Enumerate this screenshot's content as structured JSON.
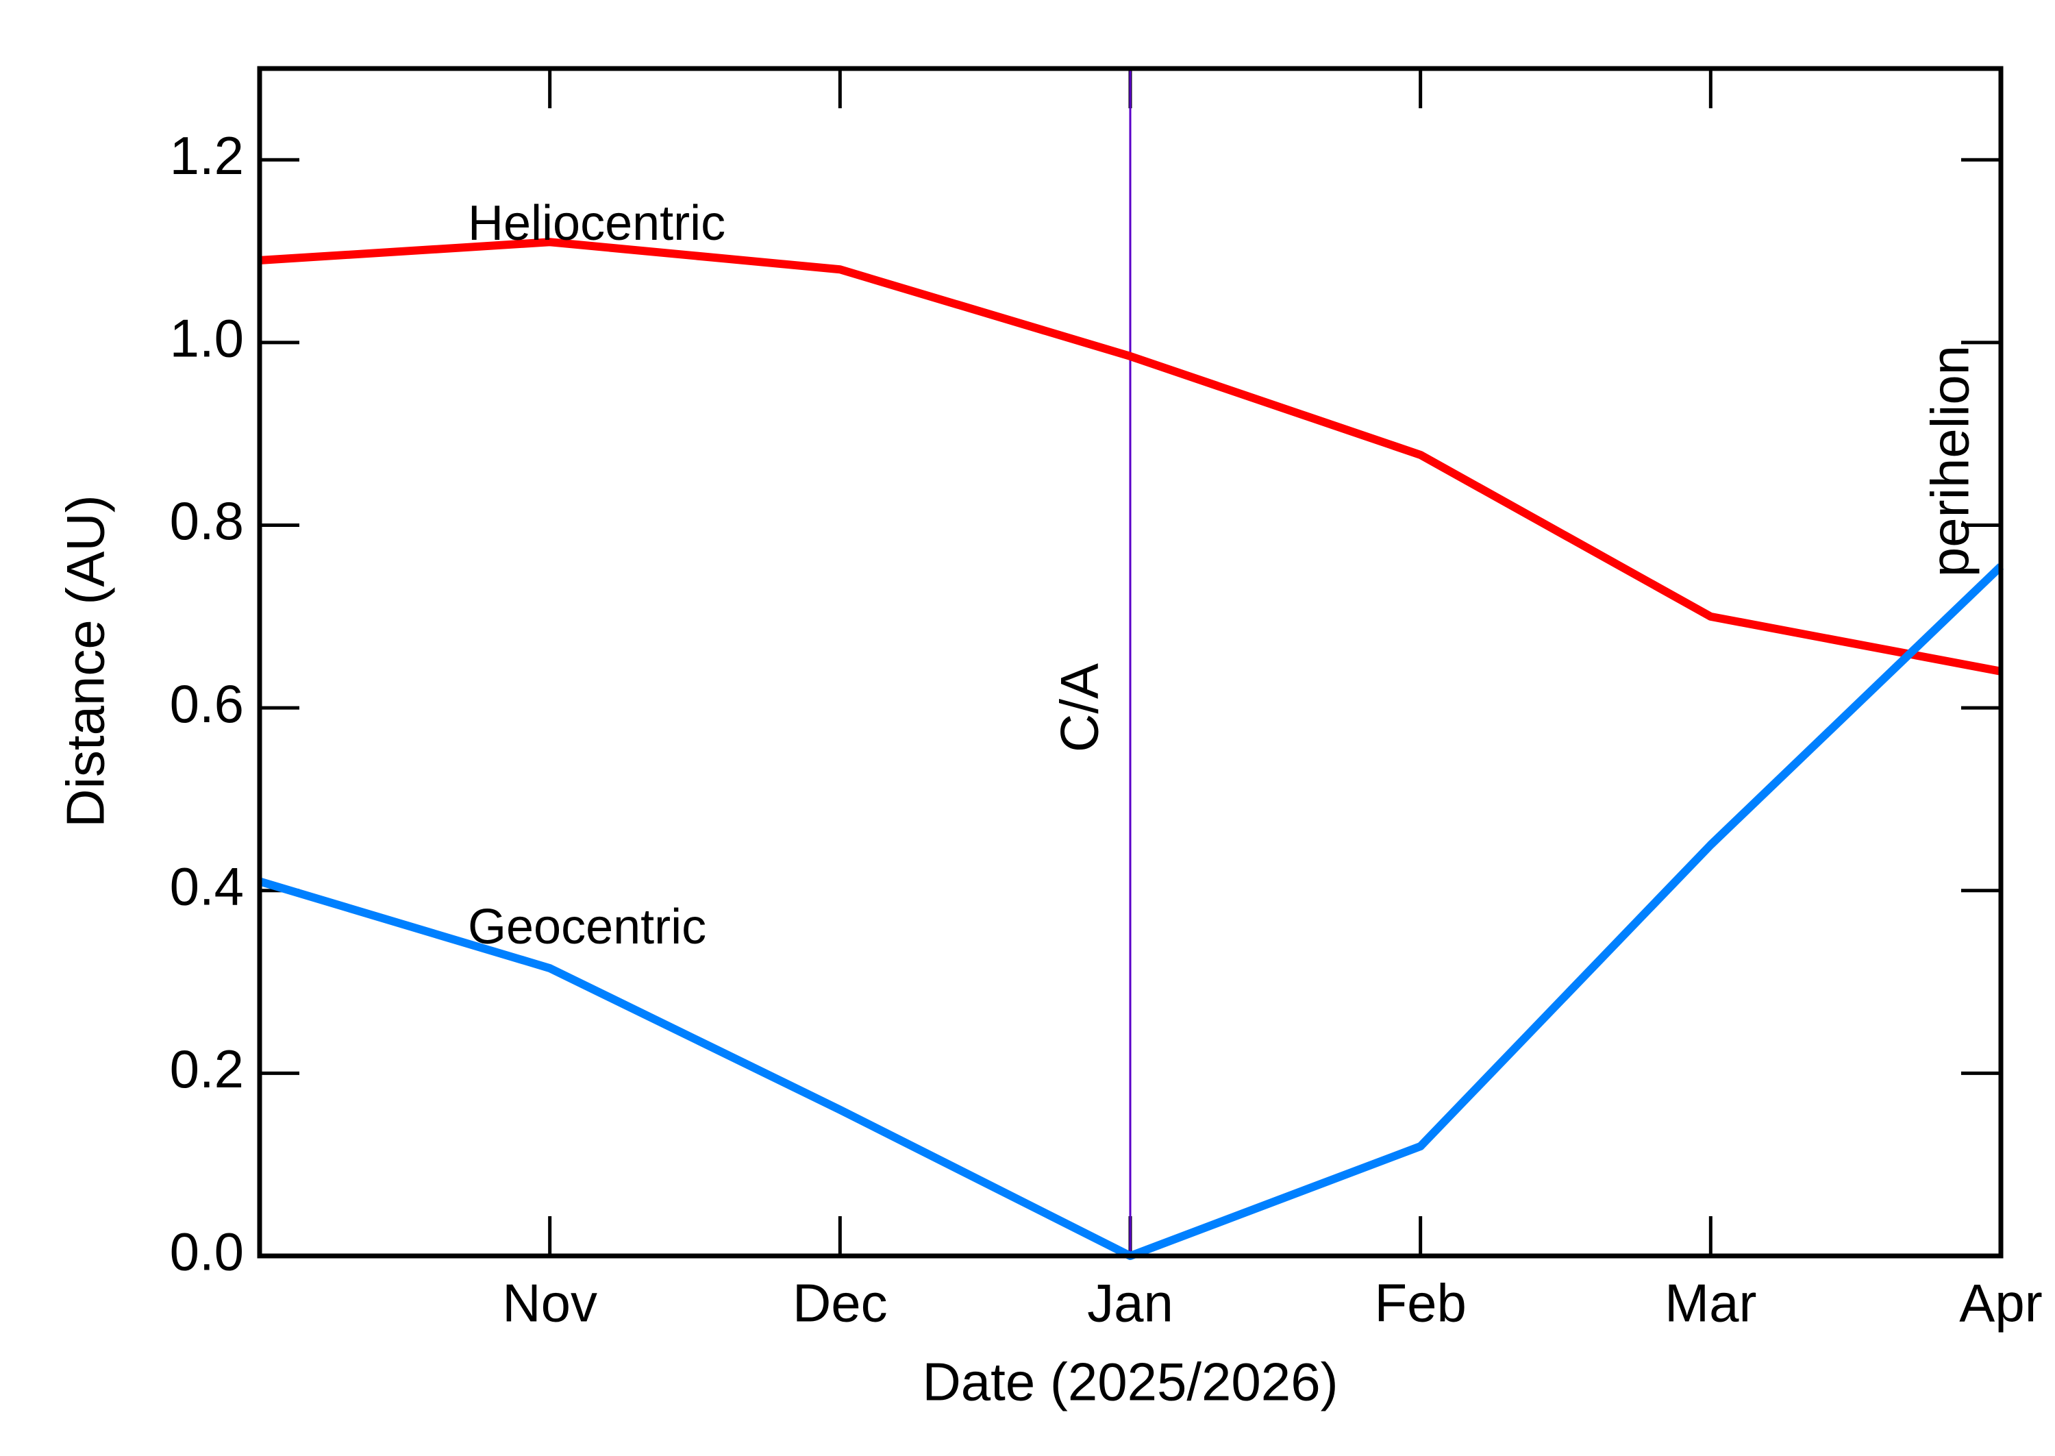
{
  "chart_data": {
    "type": "line",
    "x_label": "Date (2025/2026)",
    "y_label": "Distance (AU)",
    "x": [
      "2025-10",
      "2025-11",
      "2025-12",
      "2026-01",
      "2026-02",
      "2026-03",
      "2026-04"
    ],
    "series": [
      {
        "name": "Heliocentric",
        "color": "#ff0000",
        "values": [
          1.09,
          1.11,
          1.08,
          0.985,
          0.877,
          0.7,
          0.64
        ]
      },
      {
        "name": "Geocentric",
        "color": "#0080ff",
        "values": [
          0.41,
          0.315,
          0.16,
          0.0,
          0.12,
          0.45,
          0.755
        ]
      }
    ],
    "xlim": [
      "2025-10",
      "2026-04"
    ],
    "xticks": [
      {
        "value": "2025-11",
        "label": "Nov"
      },
      {
        "value": "2025-12",
        "label": "Dec"
      },
      {
        "value": "2026-01",
        "label": "Jan"
      },
      {
        "value": "2026-02",
        "label": "Feb"
      },
      {
        "value": "2026-03",
        "label": "Mar"
      },
      {
        "value": "2026-04",
        "label": "Apr"
      }
    ],
    "ylim": [
      0,
      1.3
    ],
    "yticks": [
      {
        "value": 0,
        "label": "0.0"
      },
      0.2,
      0.4,
      0.6,
      0.8,
      {
        "value": 1,
        "label": "1.0"
      },
      1.2
    ],
    "annotations": [
      {
        "text": "C/A",
        "x": "2026-01",
        "color": "#5a00c8"
      },
      {
        "text": "perihelion",
        "x": "2026-04",
        "color": "#ff6010"
      }
    ]
  }
}
